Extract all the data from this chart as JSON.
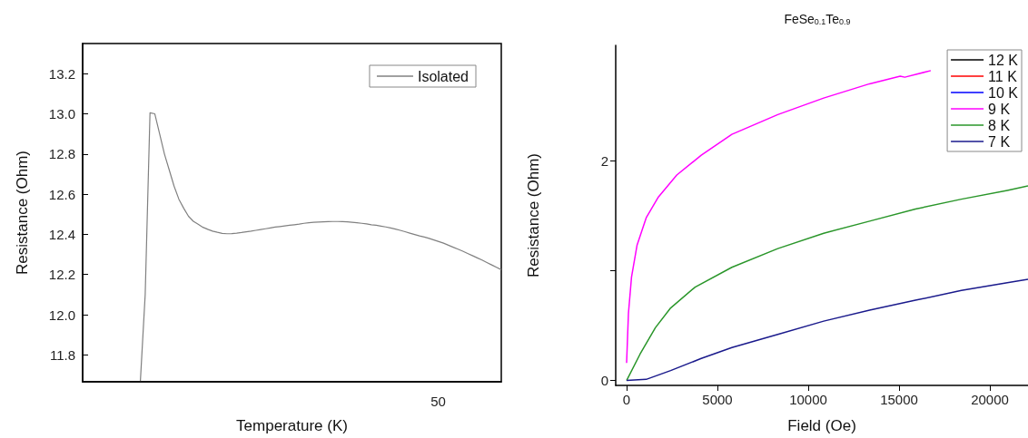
{
  "chart_data": [
    {
      "type": "line",
      "xlabel": "Temperature (K)",
      "ylabel": "Resistance (Ohm)",
      "annotations": [
        "50"
      ],
      "categories": [
        null,
        null,
        null,
        null,
        null,
        null,
        null,
        null,
        null,
        null,
        null,
        null,
        null,
        null,
        null,
        null,
        null,
        null,
        null,
        null,
        null,
        null,
        null,
        null,
        null,
        null,
        null,
        null,
        null,
        null,
        null,
        null,
        null,
        null,
        null,
        null,
        null,
        null,
        null,
        null,
        null,
        null,
        null,
        null,
        null,
        null,
        null,
        null,
        null,
        null,
        null,
        null,
        null,
        null,
        null,
        null,
        null,
        null,
        null,
        null,
        null,
        null,
        null,
        null,
        null,
        null,
        null,
        null,
        null,
        null,
        null,
        null,
        null,
        null,
        null,
        null,
        null,
        null,
        null,
        null,
        null,
        null,
        null,
        null,
        null,
        null,
        null,
        null
      ],
      "ylim": [
        11.666,
        13.35
      ],
      "yticks": [
        11.8,
        {
          "value": 12,
          "label": "12.0"
        },
        12.2,
        12.4,
        12.6,
        12.8,
        {
          "value": 13,
          "label": "13.0"
        },
        13.2
      ],
      "grid": false,
      "legend": "top right",
      "marker": "none",
      "line_style": "solid",
      "series": [
        {
          "name": "Isolated",
          "color": "#808080",
          "values": [
            null,
            null,
            null,
            null,
            null,
            null,
            null,
            null,
            null,
            null,
            null,
            null,
            11.67,
            12.1,
            13.005,
            13.0,
            12.9,
            12.8,
            12.72,
            12.64,
            12.575,
            12.53,
            12.49,
            12.465,
            12.45,
            12.435,
            12.425,
            12.416,
            12.41,
            12.405,
            12.403,
            12.404,
            12.406,
            12.409,
            12.413,
            12.416,
            12.42,
            12.424,
            12.428,
            12.432,
            12.436,
            12.439,
            12.442,
            12.445,
            12.448,
            12.451,
            12.455,
            12.458,
            12.46,
            12.461,
            12.462,
            12.463,
            12.464,
            12.464,
            12.463,
            12.462,
            12.46,
            12.458,
            12.455,
            12.452,
            12.448,
            12.445,
            12.441,
            12.437,
            12.432,
            12.426,
            12.42,
            12.413,
            12.406,
            12.399,
            12.392,
            12.387,
            12.38,
            12.372,
            12.364,
            12.356,
            12.346,
            12.336,
            12.326,
            12.316,
            12.305,
            12.294,
            12.283,
            12.272,
            12.26,
            12.248,
            12.236,
            12.224
          ]
        }
      ]
    },
    {
      "type": "line",
      "title": "FeSe$_{0.1}$Te$_{0.9}$",
      "xlabel": "Field (Oe)",
      "ylabel": "Resistance (Ohm)",
      "xlim": [
        -600,
        22100
      ],
      "xticks": [
        0,
        5000,
        10000,
        15000,
        20000
      ],
      "ylim": [
        -0.045,
        3.05
      ],
      "yticks": [
        0,
        {
          "value": 1,
          "label": null
        },
        2
      ],
      "grid": false,
      "legend": "top right",
      "marker": "none",
      "line_style": "solid",
      "series": [
        {
          "name": "12 K",
          "color": "#000000"
        },
        {
          "name": "11 K",
          "color": "#ff0000"
        },
        {
          "name": "10 K",
          "color": "#0000ff"
        },
        {
          "name": "9 K",
          "color": "#ff00ff",
          "x": [
            0,
            101,
            270,
            573,
            1078,
            1752,
            2763,
            4111,
            5796,
            8324,
            10851,
            13379,
            15064,
            15316,
            16748
          ],
          "values": [
            0.16,
            0.61,
            0.94,
            1.23,
            1.48,
            1.67,
            1.87,
            2.05,
            2.24,
            2.42,
            2.57,
            2.7,
            2.77,
            2.76,
            2.82
          ]
        },
        {
          "name": "8 K",
          "color": "#2a962a",
          "x": [
            0,
            741,
            1584,
            2426,
            3774,
            5796,
            8324,
            10851,
            13379,
            15906,
            18434,
            20961,
            22100
          ],
          "values": [
            0,
            0.24,
            0.48,
            0.66,
            0.85,
            1.03,
            1.2,
            1.34,
            1.45,
            1.56,
            1.65,
            1.73,
            1.77
          ]
        },
        {
          "name": "7 K",
          "color": "#1a1a8c",
          "x": [
            0,
            1078,
            2426,
            4111,
            5796,
            8324,
            10851,
            13379,
            15906,
            18434,
            20961,
            22100
          ],
          "values": [
            0,
            0.01,
            0.09,
            0.2,
            0.3,
            0.42,
            0.54,
            0.64,
            0.73,
            0.82,
            0.89,
            0.92
          ]
        }
      ]
    }
  ]
}
